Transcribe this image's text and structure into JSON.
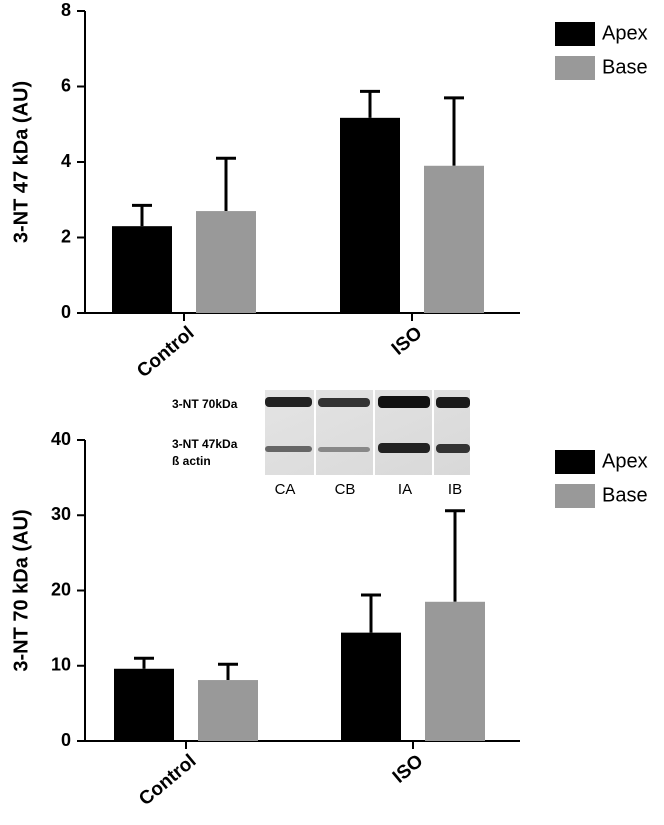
{
  "chart_data": [
    {
      "type": "bar",
      "ylabel": "3-NT 47 kDa (AU)",
      "categories": [
        "Control",
        "ISO"
      ],
      "series": [
        {
          "name": "Apex",
          "color": "#000000",
          "values": [
            2.3,
            5.17
          ],
          "errors": [
            0.55,
            0.7
          ]
        },
        {
          "name": "Base",
          "color": "#999999",
          "values": [
            2.7,
            3.9
          ],
          "errors": [
            1.4,
            1.8
          ]
        }
      ],
      "ylim": [
        0,
        8
      ],
      "yticks": [
        0,
        2,
        4,
        6,
        8
      ],
      "legend": "right"
    },
    {
      "type": "bar",
      "ylabel": "3-NT 70 kDa (AU)",
      "categories": [
        "Control",
        "ISO"
      ],
      "series": [
        {
          "name": "Apex",
          "color": "#000000",
          "values": [
            9.6,
            14.4
          ],
          "errors": [
            1.4,
            5.0
          ]
        },
        {
          "name": "Base",
          "color": "#999999",
          "values": [
            8.1,
            18.5
          ],
          "errors": [
            2.1,
            12.1
          ]
        }
      ],
      "ylim": [
        0,
        40
      ],
      "yticks": [
        0,
        10,
        20,
        30,
        40
      ],
      "legend": "right",
      "inset": {
        "labels": [
          "3-NT 70kDa",
          "3-NT 47kDa",
          "ß actin"
        ],
        "lanes": [
          "CA",
          "CB",
          "IA",
          "IB"
        ]
      }
    }
  ]
}
